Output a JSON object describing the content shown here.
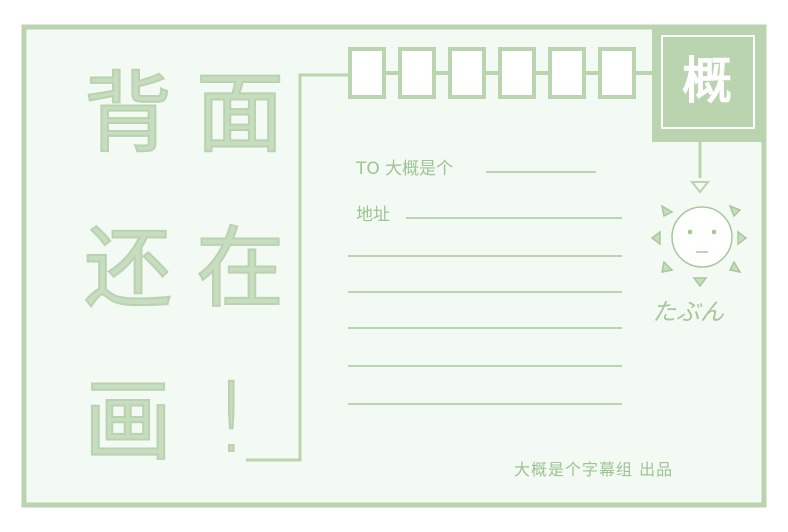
{
  "card": {
    "big_chars": [
      "背",
      "面",
      "还",
      "在",
      "画",
      "!"
    ],
    "to_label": "TO 大概是个",
    "address_label": "地址",
    "logo": "概",
    "mascot_text": "たぶん",
    "credit": "大概是个字幕组 出品"
  },
  "colors": {
    "frame": "#b9d4ae",
    "frame_bg": "#f3faf3",
    "logo_bg": "#b9d4ae",
    "text": "#9ec392"
  }
}
